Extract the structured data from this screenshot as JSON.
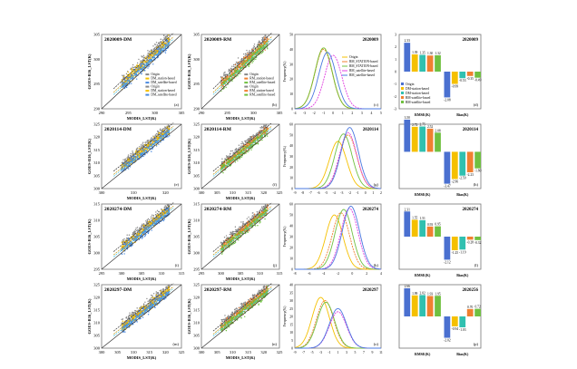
{
  "chart_data": [
    {
      "type": "scatter",
      "panel": "a",
      "title": "2020009-DM",
      "tag": "(a)",
      "xlabel": "MODIS_LST(K)",
      "ylabel": "GOES-R16_LST(K)",
      "xlim": [
        290,
        305
      ],
      "ylim": [
        290,
        305
      ],
      "xticks": [
        290,
        295,
        300,
        305
      ],
      "yticks": [
        290,
        295,
        300,
        305
      ],
      "legend": [
        "Origin",
        "DM_station-based",
        "DM_satellite-based",
        "Origin",
        "DM_station-based",
        "DM_satellite-based"
      ],
      "colors": [
        "#888888",
        "#f5c000",
        "#4a8ae0"
      ]
    },
    {
      "type": "scatter",
      "panel": "b",
      "title": "2020009-RM",
      "tag": "(b)",
      "xlabel": "MODIS_LST(K)",
      "ylabel": "GOES-R16_LST(K)",
      "xlim": [
        290,
        305
      ],
      "ylim": [
        290,
        305
      ],
      "xticks": [
        290,
        295,
        300,
        305
      ],
      "yticks": [
        290,
        295,
        300,
        305
      ],
      "legend": [
        "Origin",
        "RM_station-based",
        "RM_satellite-based",
        "Origin",
        "RM_station-based",
        "RM_satellite-based"
      ],
      "colors": [
        "#888888",
        "#f08030",
        "#70c040"
      ]
    },
    {
      "type": "line",
      "panel": "c",
      "title": "2020009",
      "tag": "(c)",
      "ylabel": "Frequency(%)",
      "xlim": [
        -4,
        5
      ],
      "ylim": [
        0,
        50
      ],
      "xticks": [
        -4,
        -3,
        -2,
        -1,
        0,
        1,
        2,
        3,
        4,
        5
      ],
      "yticks": [
        0,
        10,
        20,
        30,
        40,
        50
      ],
      "series": [
        {
          "name": "Origin",
          "peak_x": -1,
          "peak_y": 41
        },
        {
          "name": "RM_STATION-based",
          "peak_x": -1,
          "peak_y": 40
        },
        {
          "name": "RM_STATION-based",
          "peak_x": -1,
          "peak_y": 41
        },
        {
          "name": "RM_satellite-based",
          "peak_x": 0,
          "peak_y": 36
        },
        {
          "name": "RM_satellite-based",
          "peak_x": -0.6,
          "peak_y": 38
        }
      ]
    },
    {
      "type": "bar",
      "panel": "d",
      "title": "2020009",
      "tag": "(d)",
      "categories": [
        "RMSE(K)",
        "Bias(K)"
      ],
      "ylim": [
        -3,
        3
      ],
      "yticks": [
        -3,
        -2,
        -1,
        0,
        1,
        2,
        3
      ],
      "series": [
        {
          "name": "Origin",
          "values": [
            2.33,
            -2.08
          ]
        },
        {
          "name": "DM-station-based",
          "values": [
            1.39,
            -0.99
          ]
        },
        {
          "name": "DM-station-based",
          "values": [
            1.35,
            -0.53
          ]
        },
        {
          "name": "RM-satellite-based",
          "values": [
            1.3,
            -0.35
          ]
        },
        {
          "name": "RM-satellite-based",
          "values": [
            1.32,
            -0.49
          ]
        }
      ]
    },
    {
      "type": "scatter",
      "panel": "e",
      "title": "2020114-DM",
      "tag": "(e)",
      "xlabel": "MODIS_LST(K)",
      "ylabel": "GOES-R16_LST(K)",
      "xlim": [
        300,
        325
      ],
      "ylim": [
        300,
        325
      ],
      "xticks": [
        300,
        310,
        320
      ],
      "yticks": [
        300,
        305,
        310,
        315,
        320,
        325
      ],
      "colors": [
        "#888888",
        "#f5c000",
        "#4a8ae0"
      ]
    },
    {
      "type": "scatter",
      "panel": "f",
      "title": "2020114-RM",
      "tag": "(f)",
      "xlabel": "MODIS_LST(K)",
      "ylabel": "GOES-R16_LST(K)",
      "xlim": [
        300,
        325
      ],
      "ylim": [
        300,
        325
      ],
      "xticks": [
        300,
        305,
        310,
        315,
        320,
        325
      ],
      "yticks": [
        300,
        305,
        310,
        315,
        320,
        325
      ],
      "colors": [
        "#888888",
        "#f08030",
        "#70c040"
      ]
    },
    {
      "type": "line",
      "panel": "g",
      "title": "2020114",
      "tag": "(g)",
      "ylabel": "Frequency(%)",
      "xlim": [
        -9,
        2
      ],
      "ylim": [
        0,
        60
      ],
      "xticks": [
        -9,
        -8,
        -7,
        -6,
        -5,
        -4,
        -3,
        -2,
        -1,
        0,
        1,
        2
      ],
      "yticks": [
        0,
        10,
        20,
        30,
        40,
        50,
        60
      ],
      "series": [
        {
          "name": "Origin",
          "peak_x": -3.5,
          "peak_y": 44
        },
        {
          "name": "RM_STATION-based",
          "peak_x": -2.2,
          "peak_y": 50
        },
        {
          "name": "RM_STATION-based",
          "peak_x": -2.8,
          "peak_y": 51
        },
        {
          "name": "RM_satellite-based",
          "peak_x": -2.2,
          "peak_y": 52
        },
        {
          "name": "RM_satellite-based",
          "peak_x": -2,
          "peak_y": 57
        }
      ]
    },
    {
      "type": "bar",
      "panel": "h",
      "title": "2020114",
      "tag": "(h)",
      "categories": [
        "RMSE(K)",
        "Bias(K)"
      ],
      "ylim": [
        -4,
        3
      ],
      "yticks": [
        -4,
        -3,
        -2,
        -1,
        0,
        1,
        2,
        3
      ],
      "series": [
        {
          "name": "Origin",
          "values": [
            3.5,
            -3.47
          ]
        },
        {
          "name": "DM-station-based",
          "values": [
            2.72,
            -2.96
          ]
        },
        {
          "name": "DM-station-based",
          "values": [
            2.75,
            -2.59
          ]
        },
        {
          "name": "RM-satellite-based",
          "values": [
            2.52,
            -2.23
          ]
        },
        {
          "name": "RM-satellite-based",
          "values": [
            2.08,
            -1.8
          ]
        }
      ]
    },
    {
      "type": "scatter",
      "panel": "i",
      "title": "2020274-DM",
      "tag": "(i)",
      "xlabel": "MODIS_LST(K)",
      "ylabel": "GOES-R16_LST(K)",
      "xlim": [
        295,
        315
      ],
      "ylim": [
        295,
        315
      ],
      "xticks": [
        295,
        300,
        305,
        310,
        315
      ],
      "yticks": [
        295,
        300,
        305,
        310,
        315
      ],
      "colors": [
        "#888888",
        "#f5c000",
        "#4a8ae0"
      ]
    },
    {
      "type": "scatter",
      "panel": "j",
      "title": "2020274-RM",
      "tag": "(j)",
      "xlabel": "MODIS_LST(K)",
      "ylabel": "GOES-R16_LST(K)",
      "xlim": [
        295,
        315
      ],
      "ylim": [
        295,
        315
      ],
      "xticks": [
        295,
        300,
        305,
        310,
        315
      ],
      "yticks": [
        295,
        300,
        305,
        310,
        315
      ],
      "colors": [
        "#888888",
        "#f08030",
        "#70c040"
      ]
    },
    {
      "type": "line",
      "panel": "k",
      "title": "2020274",
      "tag": "(k)",
      "ylabel": "Frequency(%)",
      "xlim": [
        -8,
        4
      ],
      "ylim": [
        0,
        60
      ],
      "xticks": [
        -8,
        -6,
        -4,
        -2,
        0,
        2,
        4
      ],
      "yticks": [
        0,
        10,
        20,
        30,
        40,
        50,
        60
      ],
      "series": [
        {
          "name": "Origin",
          "peak_x": -2.5,
          "peak_y": 50
        },
        {
          "name": "RM_STATION-based",
          "peak_x": -1.6,
          "peak_y": 52
        },
        {
          "name": "RM_STATION-based",
          "peak_x": -1.2,
          "peak_y": 55
        },
        {
          "name": "RM_satellite-based",
          "peak_x": -0.4,
          "peak_y": 56
        },
        {
          "name": "RM_satellite-based",
          "peak_x": -0.2,
          "peak_y": 58
        }
      ]
    },
    {
      "type": "bar",
      "panel": "l",
      "title": "2020274",
      "tag": "(l)",
      "categories": [
        "RMSE(K)",
        "Bias(K)"
      ],
      "ylim": [
        -3,
        3
      ],
      "yticks": [
        -3,
        -2,
        -1,
        0,
        1,
        2,
        3
      ],
      "series": [
        {
          "name": "Origin",
          "values": [
            2.31,
            -2.12
          ]
        },
        {
          "name": "DM-station-based",
          "values": [
            1.55,
            -1.25
          ]
        },
        {
          "name": "DM-station-based",
          "values": [
            1.51,
            -1.19
          ]
        },
        {
          "name": "RM-satellite-based",
          "values": [
            0.93,
            -0.28
          ]
        },
        {
          "name": "RM-satellite-based",
          "values": [
            0.95,
            -0.32
          ]
        }
      ]
    },
    {
      "type": "scatter",
      "panel": "m",
      "title": "2020297-DM",
      "tag": "(m)",
      "xlabel": "MODIS_LST(K)",
      "ylabel": "GOES-R16_LST(K)",
      "xlim": [
        300,
        325
      ],
      "ylim": [
        300,
        325
      ],
      "xticks": [
        300,
        305,
        310,
        315,
        320,
        325
      ],
      "yticks": [
        300,
        305,
        310,
        315,
        320,
        325
      ],
      "colors": [
        "#888888",
        "#f5c000",
        "#4a8ae0"
      ]
    },
    {
      "type": "scatter",
      "panel": "n",
      "title": "2020297-RM",
      "tag": "(n)",
      "xlabel": "MODIS_LST(K)",
      "ylabel": "GOES-R16_LST(K)",
      "xlim": [
        300,
        325
      ],
      "ylim": [
        300,
        325
      ],
      "xticks": [
        300,
        305,
        310,
        315,
        320,
        325
      ],
      "yticks": [
        300,
        305,
        310,
        315,
        320,
        325
      ],
      "colors": [
        "#888888",
        "#f08030",
        "#70c040"
      ]
    },
    {
      "type": "line",
      "panel": "o",
      "title": "2020297",
      "tag": "(o)",
      "ylabel": "Frequency(%)",
      "xlim": [
        -9,
        11
      ],
      "ylim": [
        0,
        40
      ],
      "xticks": [
        -9,
        -7,
        -5,
        -3,
        -1,
        1,
        3,
        5,
        7,
        9,
        11
      ],
      "yticks": [
        0,
        5,
        10,
        15,
        20,
        25,
        30,
        35,
        40
      ],
      "series": [
        {
          "name": "Origin",
          "peak_x": -3,
          "peak_y": 32
        },
        {
          "name": "RM_STATION-based",
          "peak_x": -2,
          "peak_y": 30
        },
        {
          "name": "RM_STATION-based",
          "peak_x": -1.8,
          "peak_y": 29
        },
        {
          "name": "RM_satellite-based",
          "peak_x": 1,
          "peak_y": 23
        },
        {
          "name": "RM_satellite-based",
          "peak_x": 1,
          "peak_y": 25
        }
      ]
    },
    {
      "type": "bar",
      "panel": "p",
      "title": "2020256",
      "tag": "(p)",
      "categories": [
        "RMSE(K)",
        "Bias(K)"
      ],
      "ylim": [
        -3,
        3
      ],
      "yticks": [
        -3,
        -2,
        -1,
        0,
        1,
        2,
        3
      ],
      "series": [
        {
          "name": "Origin",
          "values": [
            2.66,
            -2.02
          ]
        },
        {
          "name": "DM-station-based",
          "values": [
            1.99,
            -0.94
          ]
        },
        {
          "name": "DM-station-based",
          "values": [
            2.02,
            -1.03
          ]
        },
        {
          "name": "RM-satellite-based",
          "values": [
            1.93,
            0.7
          ]
        },
        {
          "name": "RM-satellite-based",
          "values": [
            1.95,
            0.72
          ]
        }
      ]
    }
  ],
  "density_legend": [
    "Origin",
    "RM_STATION-based",
    "RM_STATION-based",
    "RM_satellite-based",
    "RM_satellite-based"
  ],
  "density_colors": [
    "#f5c000",
    "#f08030",
    "#70c040",
    "#e040e0",
    "#4a78e0"
  ],
  "bar_legend": [
    "Origin",
    "DM-station-based",
    "DM-station-based",
    "RM-satellite-based",
    "RM-satellite-based"
  ],
  "bar_colors": [
    "#4a70d0",
    "#f5c000",
    "#30c0b0",
    "#f08030",
    "#70c040"
  ]
}
